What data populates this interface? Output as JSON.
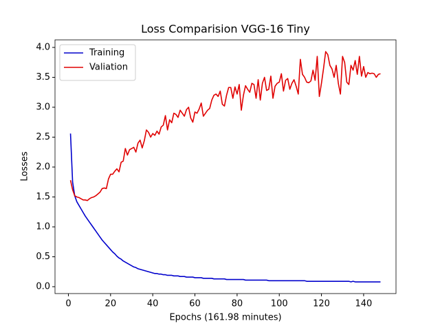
{
  "chart_data": {
    "type": "line",
    "title": "Loss Comparision VGG-16 Tiny",
    "xlabel": "Epochs (161.98 minutes)",
    "ylabel": "Losses",
    "x": [
      1,
      2,
      3,
      4,
      5,
      6,
      7,
      8,
      9,
      10,
      11,
      12,
      13,
      14,
      15,
      16,
      17,
      18,
      19,
      20,
      21,
      22,
      23,
      24,
      25,
      26,
      27,
      28,
      29,
      30,
      31,
      32,
      33,
      34,
      35,
      36,
      37,
      38,
      39,
      40,
      41,
      42,
      43,
      44,
      45,
      46,
      47,
      48,
      49,
      50,
      51,
      52,
      53,
      54,
      55,
      56,
      57,
      58,
      59,
      60,
      61,
      62,
      63,
      64,
      65,
      66,
      67,
      68,
      69,
      70,
      71,
      72,
      73,
      74,
      75,
      76,
      77,
      78,
      79,
      80,
      81,
      82,
      83,
      84,
      85,
      86,
      87,
      88,
      89,
      90,
      91,
      92,
      93,
      94,
      95,
      96,
      97,
      98,
      99,
      100,
      101,
      102,
      103,
      104,
      105,
      106,
      107,
      108,
      109,
      110,
      111,
      112,
      113,
      114,
      115,
      116,
      117,
      118,
      119,
      120,
      121,
      122,
      123,
      124,
      125,
      126,
      127,
      128,
      129,
      130,
      131,
      132,
      133,
      134,
      135,
      136,
      137,
      138,
      139,
      140,
      141,
      142,
      143,
      144,
      145,
      146,
      147,
      148
    ],
    "series": [
      {
        "name": "Training",
        "color": "#0000cc",
        "values": [
          2.56,
          1.75,
          1.52,
          1.42,
          1.36,
          1.3,
          1.24,
          1.18,
          1.13,
          1.08,
          1.03,
          0.98,
          0.93,
          0.88,
          0.83,
          0.78,
          0.74,
          0.7,
          0.66,
          0.62,
          0.58,
          0.55,
          0.51,
          0.48,
          0.46,
          0.43,
          0.41,
          0.39,
          0.37,
          0.35,
          0.33,
          0.32,
          0.3,
          0.29,
          0.28,
          0.27,
          0.26,
          0.25,
          0.24,
          0.23,
          0.22,
          0.22,
          0.21,
          0.21,
          0.2,
          0.2,
          0.19,
          0.19,
          0.19,
          0.18,
          0.18,
          0.18,
          0.17,
          0.17,
          0.17,
          0.16,
          0.16,
          0.16,
          0.16,
          0.15,
          0.15,
          0.15,
          0.15,
          0.14,
          0.14,
          0.14,
          0.14,
          0.14,
          0.13,
          0.13,
          0.13,
          0.13,
          0.13,
          0.13,
          0.12,
          0.12,
          0.12,
          0.12,
          0.12,
          0.12,
          0.12,
          0.12,
          0.12,
          0.11,
          0.11,
          0.11,
          0.11,
          0.11,
          0.11,
          0.11,
          0.11,
          0.11,
          0.11,
          0.11,
          0.1,
          0.1,
          0.1,
          0.1,
          0.1,
          0.1,
          0.1,
          0.1,
          0.1,
          0.1,
          0.1,
          0.1,
          0.1,
          0.1,
          0.1,
          0.1,
          0.1,
          0.1,
          0.09,
          0.09,
          0.09,
          0.09,
          0.09,
          0.09,
          0.09,
          0.09,
          0.09,
          0.09,
          0.09,
          0.09,
          0.09,
          0.09,
          0.09,
          0.09,
          0.09,
          0.09,
          0.09,
          0.09,
          0.09,
          0.08,
          0.09,
          0.08,
          0.08,
          0.08,
          0.08,
          0.08,
          0.08,
          0.08,
          0.08,
          0.08,
          0.08,
          0.08,
          0.08,
          0.08
        ]
      },
      {
        "name": "Valiation",
        "color": "#e00000",
        "values": [
          1.78,
          1.62,
          1.52,
          1.5,
          1.49,
          1.47,
          1.45,
          1.45,
          1.44,
          1.47,
          1.49,
          1.5,
          1.52,
          1.55,
          1.58,
          1.64,
          1.65,
          1.64,
          1.8,
          1.88,
          1.88,
          1.93,
          1.97,
          1.92,
          2.08,
          2.1,
          2.31,
          2.2,
          2.29,
          2.31,
          2.33,
          2.25,
          2.4,
          2.45,
          2.32,
          2.44,
          2.62,
          2.58,
          2.5,
          2.56,
          2.53,
          2.6,
          2.55,
          2.67,
          2.7,
          2.86,
          2.62,
          2.79,
          2.74,
          2.9,
          2.88,
          2.83,
          2.95,
          2.9,
          2.85,
          2.96,
          3.0,
          2.82,
          2.75,
          2.92,
          2.9,
          2.97,
          3.07,
          2.85,
          2.9,
          2.95,
          2.98,
          3.12,
          3.2,
          3.22,
          3.18,
          3.27,
          3.05,
          3.02,
          3.2,
          3.33,
          3.33,
          3.15,
          3.34,
          3.22,
          3.38,
          2.95,
          3.2,
          3.36,
          3.3,
          3.25,
          3.4,
          3.38,
          3.15,
          3.46,
          3.12,
          3.4,
          3.5,
          3.28,
          3.3,
          3.52,
          3.15,
          3.35,
          3.4,
          3.42,
          3.56,
          3.27,
          3.45,
          3.48,
          3.3,
          3.4,
          3.46,
          3.35,
          3.22,
          3.8,
          3.55,
          3.5,
          3.42,
          3.41,
          3.44,
          3.62,
          3.45,
          3.85,
          3.18,
          3.4,
          3.65,
          3.93,
          3.88,
          3.7,
          3.64,
          3.5,
          3.7,
          3.4,
          3.22,
          3.85,
          3.75,
          3.42,
          3.38,
          3.7,
          3.62,
          3.78,
          3.55,
          3.85,
          3.52,
          3.68,
          3.5,
          3.58,
          3.56,
          3.57,
          3.56,
          3.5,
          3.55,
          3.56
        ]
      }
    ],
    "xlim": [
      -6.35,
      155.35
    ],
    "ylim": [
      -0.115,
      4.126
    ],
    "xticks": [
      0,
      20,
      40,
      60,
      80,
      100,
      120,
      140
    ],
    "yticks": [
      {
        "value": 0,
        "label": "0.0"
      },
      0.5,
      {
        "value": 1,
        "label": "1.0"
      },
      1.5,
      {
        "value": 2,
        "label": "2.0"
      },
      2.5,
      {
        "value": 3,
        "label": "3.0"
      },
      3.5,
      {
        "value": 4,
        "label": "4.0"
      }
    ],
    "legend": "upper left",
    "grid": false
  }
}
